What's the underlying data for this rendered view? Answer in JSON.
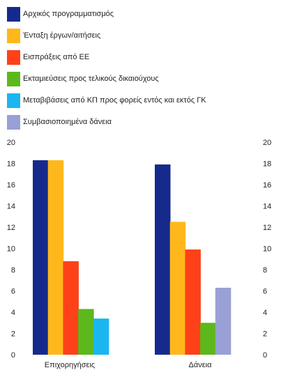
{
  "chart_data": {
    "type": "bar",
    "categories": [
      "Επιχορηγήσεις",
      "Δάνεια"
    ],
    "series": [
      {
        "name": "Αρχικός προγραμματισμός",
        "color": "#162a8c",
        "values": [
          18.3,
          17.9
        ]
      },
      {
        "name": "Ένταξη έργων/αιτήσεις",
        "color": "#ffb81c",
        "values": [
          18.3,
          12.5
        ]
      },
      {
        "name": "Εισπράξεις από ΕΕ",
        "color": "#ff4119",
        "values": [
          8.8,
          9.9
        ]
      },
      {
        "name": "Εκταμιεύσεις προς τελικούς δικαιούχους",
        "color": "#5cb81c",
        "values": [
          4.3,
          3.0
        ]
      },
      {
        "name": "Μεταβιβάσεις από ΚΠ προς φορείς εντός και εκτός ΓΚ",
        "color": "#1ab6f0",
        "values": [
          3.4,
          null
        ]
      },
      {
        "name": "Συμβασιοποιημένα δάνεια",
        "color": "#98a0d6",
        "values": [
          null,
          6.3
        ]
      }
    ],
    "yticks": [
      "0",
      "2",
      "4",
      "6",
      "8",
      "10",
      "12",
      "14",
      "16",
      "18",
      "20"
    ],
    "ylim": [
      0,
      20
    ],
    "grid": false,
    "legend_position": "top-left",
    "secondary_axis": true
  }
}
